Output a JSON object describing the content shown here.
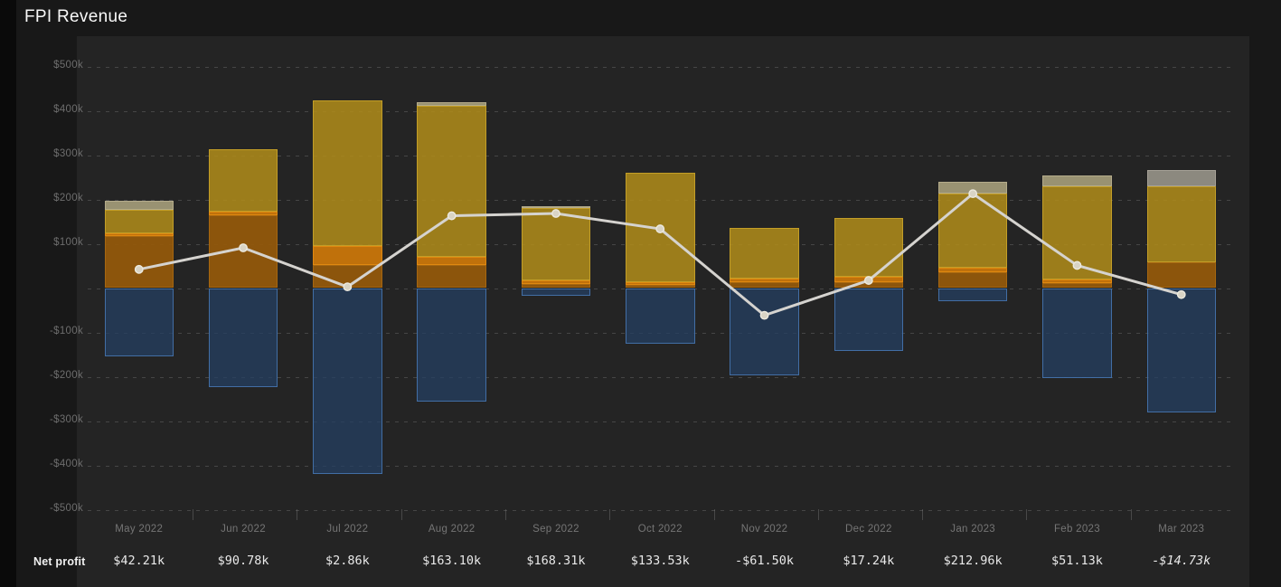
{
  "title": "FPI Revenue",
  "colors": {
    "page_bg": "#181818",
    "left_strip": "#0a0a0a",
    "panel_bg": "#242424",
    "grid": "#8c8c8c",
    "y_label": "#6d6d6d",
    "month_label": "#757575",
    "value_text": "#e9e9e9",
    "title_text": "#f7f7f7"
  },
  "chart_data": {
    "type": "bar",
    "subtype": "stacked-bars-with-net-profit-line",
    "title": "FPI Revenue",
    "categories": [
      "May 2022",
      "Jun 2022",
      "Jul 2022",
      "Aug 2022",
      "Sep 2022",
      "Oct 2022",
      "Nov 2022",
      "Dec 2022",
      "Jan 2023",
      "Feb 2023",
      "Mar 2023"
    ],
    "units": "thousand USD",
    "series": [
      {
        "name": "segment-orange-dark",
        "color": "rgba(146,88,12,0.95)",
        "border": "rgba(172,106,18,0.8)",
        "values": [
          118,
          165,
          52,
          52,
          10,
          7,
          13,
          14,
          35,
          12,
          58
        ]
      },
      {
        "name": "segment-orange-bright",
        "color": "rgba(206,120,10,0.92)",
        "border": "rgba(230,142,18,0.8)",
        "values": [
          6,
          7,
          42,
          18,
          7,
          7,
          9,
          12,
          10,
          8,
          0
        ]
      },
      {
        "name": "segment-gold",
        "color": "rgba(178,141,26,0.85)",
        "border": "rgba(212,172,44,0.7)",
        "values": [
          52,
          142,
          329,
          342,
          163,
          246,
          113,
          132,
          168,
          209,
          171
        ]
      },
      {
        "name": "segment-khaki",
        "color": "rgba(164,156,122,0.92)",
        "border": "rgba(186,178,144,0.8)",
        "values": [
          20,
          0,
          0,
          8,
          5,
          0,
          0,
          0,
          27,
          25,
          0
        ]
      },
      {
        "name": "segment-gray",
        "color": "rgba(150,146,136,0.92)",
        "border": "rgba(172,168,158,0.8)",
        "values": [
          0,
          0,
          0,
          0,
          0,
          0,
          0,
          0,
          0,
          0,
          37
        ]
      },
      {
        "name": "segment-negative-blue",
        "color": "rgba(36,64,100,0.72)",
        "border": "rgba(74,124,186,0.8)",
        "values": [
          -154,
          -223,
          -420,
          -257,
          -17,
          -126,
          -196,
          -141,
          -30,
          -203,
          -281
        ]
      }
    ],
    "line": {
      "name": "Net profit",
      "color": "#d5d3cf",
      "marker_fill": "#d9d4c5",
      "marker_stroke": "#edeadf",
      "values": [
        42.21,
        90.78,
        2.86,
        163.1,
        168.31,
        133.53,
        -61.5,
        17.24,
        212.96,
        51.13,
        -14.73
      ]
    },
    "y_axis": {
      "tick_labels": [
        "$500k",
        "$400k",
        "$300k",
        "$200k",
        "$100k",
        "-$100k",
        "-$200k",
        "-$300k",
        "-$400k",
        "-$500k"
      ],
      "tick_values": [
        500,
        400,
        300,
        200,
        100,
        -100,
        -200,
        -300,
        -400,
        -500
      ],
      "ylim": [
        -500,
        500
      ],
      "grid": "dashed",
      "zero_gridline": true
    },
    "legend": "none"
  },
  "net_profit_row": {
    "label": "Net profit",
    "values": [
      {
        "text": "$42.21k",
        "italic": false
      },
      {
        "text": "$90.78k",
        "italic": false
      },
      {
        "text": "$2.86k",
        "italic": false
      },
      {
        "text": "$163.10k",
        "italic": false
      },
      {
        "text": "$168.31k",
        "italic": false
      },
      {
        "text": "$133.53k",
        "italic": false
      },
      {
        "text": "-$61.50k",
        "italic": false
      },
      {
        "text": "$17.24k",
        "italic": false
      },
      {
        "text": "$212.96k",
        "italic": false
      },
      {
        "text": "$51.13k",
        "italic": false
      },
      {
        "text": "-$14.73k",
        "italic": true
      }
    ]
  }
}
